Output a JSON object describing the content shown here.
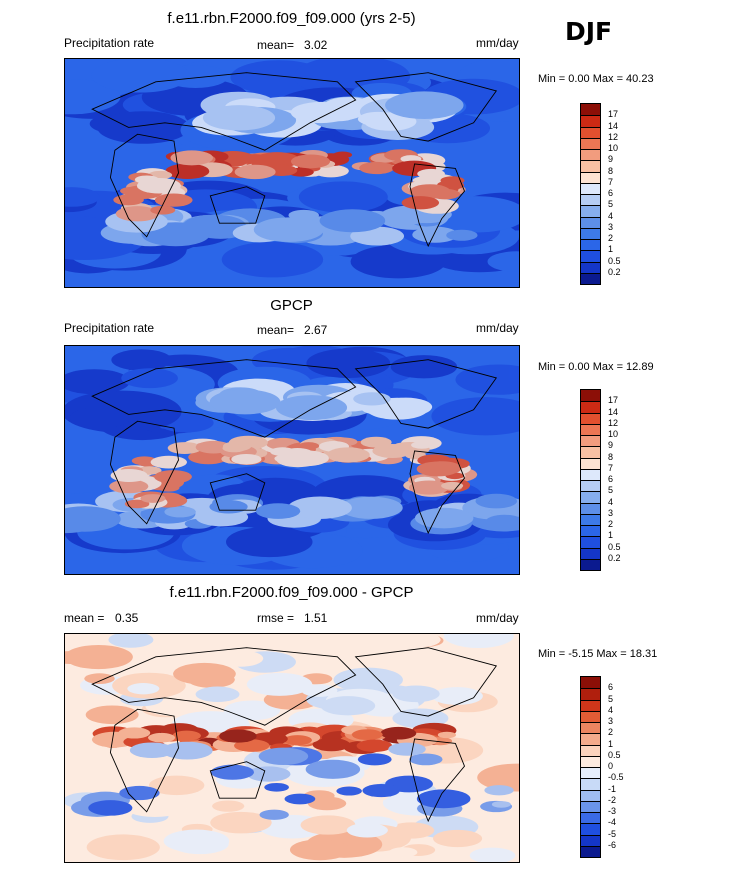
{
  "season": "DJF",
  "panels": [
    {
      "title": "f.e11.rbn.F2000.f09_f09.000 (yrs 2-5)",
      "left_label": "Precipitation rate",
      "stat_label": "mean=",
      "stat_value": "3.02",
      "stat2_label": "",
      "stat2_value": "",
      "units": "mm/day",
      "minmax_text": "Min =   0.00 Max =  40.23"
    },
    {
      "title": "GPCP",
      "left_label": "Precipitation rate",
      "stat_label": "mean=",
      "stat_value": "2.67",
      "stat2_label": "",
      "stat2_value": "",
      "units": "mm/day",
      "minmax_text": "Min =   0.00 Max =  12.89"
    },
    {
      "title": "f.e11.rbn.F2000.f09_f09.000 - GPCP",
      "left_label": "mean =",
      "left_value": "0.35",
      "stat_label": "rmse =",
      "stat_value": "1.51",
      "units": "mm/day",
      "minmax_text": "Min =  -5.15 Max =  18.31"
    }
  ],
  "chart_data": [
    {
      "type": "heatmap",
      "title": "f.e11.rbn.F2000.f09_f09.000 (yrs 2-5)",
      "variable": "Precipitation rate",
      "units": "mm/day",
      "mean": 3.02,
      "min": 0.0,
      "max": 40.23,
      "colorbar_levels": [
        "0.2",
        "0.5",
        "1",
        "2",
        "3",
        "4",
        "5",
        "6",
        "7",
        "8",
        "9",
        "10",
        "12",
        "14",
        "17"
      ],
      "colorbar_colors": [
        "#0b1a8f",
        "#1436c8",
        "#1f4fe0",
        "#2b66e8",
        "#3d7ae8",
        "#5d8fe8",
        "#86aeee",
        "#b5cdf4",
        "#dde8fb",
        "#fde3d2",
        "#f8c0a3",
        "#f29c7e",
        "#ec7654",
        "#e2502f",
        "#cc2a14",
        "#8c0f07"
      ]
    },
    {
      "type": "heatmap",
      "title": "GPCP",
      "variable": "Precipitation rate",
      "units": "mm/day",
      "mean": 2.67,
      "min": 0.0,
      "max": 12.89,
      "colorbar_levels": [
        "0.2",
        "0.5",
        "1",
        "2",
        "3",
        "4",
        "5",
        "6",
        "7",
        "8",
        "9",
        "10",
        "12",
        "14",
        "17"
      ],
      "colorbar_colors": [
        "#0b1a8f",
        "#1436c8",
        "#1f4fe0",
        "#2b66e8",
        "#3d7ae8",
        "#5d8fe8",
        "#86aeee",
        "#b5cdf4",
        "#dde8fb",
        "#fde3d2",
        "#f8c0a3",
        "#f29c7e",
        "#ec7654",
        "#e2502f",
        "#cc2a14",
        "#8c0f07"
      ]
    },
    {
      "type": "heatmap",
      "title": "f.e11.rbn.F2000.f09_f09.000 - GPCP",
      "units": "mm/day",
      "mean": 0.35,
      "rmse": 1.51,
      "min": -5.15,
      "max": 18.31,
      "colorbar_levels": [
        "-6",
        "-5",
        "-4",
        "-3",
        "-2",
        "-1",
        "-0.5",
        "0",
        "0.5",
        "1",
        "2",
        "3",
        "4",
        "5",
        "6"
      ],
      "colorbar_colors": [
        "#0b1a8f",
        "#1436c8",
        "#1f4fe0",
        "#3a6ae6",
        "#6a94ea",
        "#9fbcf1",
        "#c8daf7",
        "#e6eefb",
        "#fdebe0",
        "#fbd3bd",
        "#f4ab8c",
        "#ec8560",
        "#e25c35",
        "#d0361a",
        "#b01f0d",
        "#8c0f07"
      ]
    }
  ]
}
